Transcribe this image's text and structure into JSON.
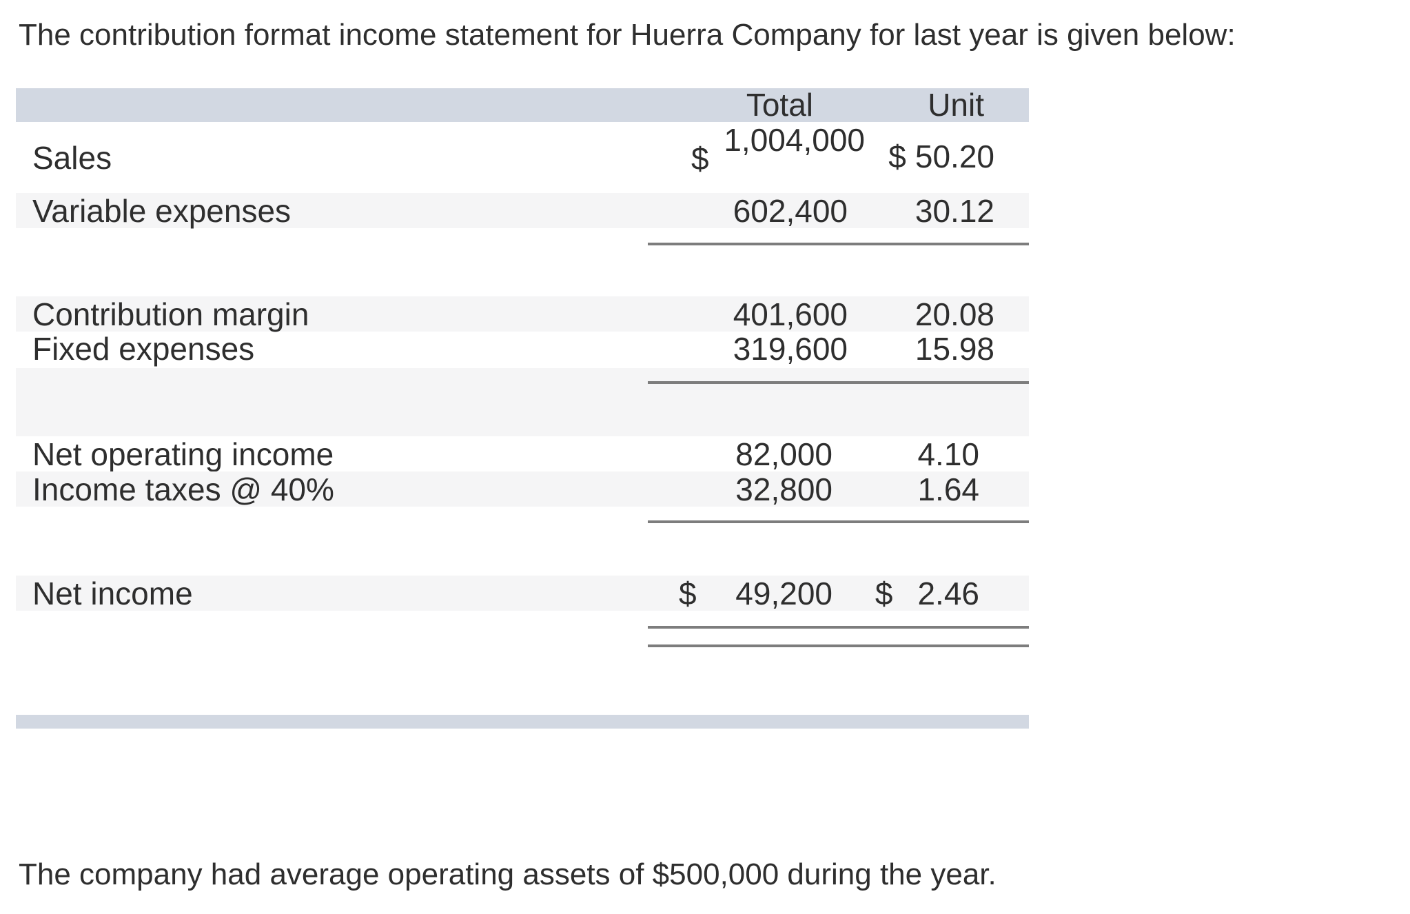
{
  "page": {
    "intro": "The contribution format income statement for Huerra Company for last year is given below:",
    "footer": "The company had average operating assets of $500,000 during the year."
  },
  "statement": {
    "columns": {
      "total": "Total",
      "unit": "Unit"
    },
    "rows": [
      {
        "label": "Sales",
        "currency": "$",
        "total": "1,004,000",
        "unit_currency": "$",
        "unit": "50.20"
      },
      {
        "label": "Variable expenses",
        "total": "602,400",
        "unit": "30.12"
      },
      {
        "label": "Contribution margin",
        "total": "401,600",
        "unit": "20.08"
      },
      {
        "label": "Fixed expenses",
        "total": "319,600",
        "unit": "15.98"
      },
      {
        "label": "Net operating income",
        "total": "82,000",
        "unit": "4.10"
      },
      {
        "label": "Income taxes @ 40%",
        "total": "32,800",
        "unit": "1.64"
      },
      {
        "label": "Net income",
        "currency": "$",
        "total": "49,200",
        "unit_currency": "$",
        "unit": "2.46"
      }
    ],
    "colors": {
      "header_band": "#d2d8e2",
      "row_stripe": "#f5f5f6",
      "rule": "#7d7d7d",
      "text": "#2e2e2e"
    }
  }
}
